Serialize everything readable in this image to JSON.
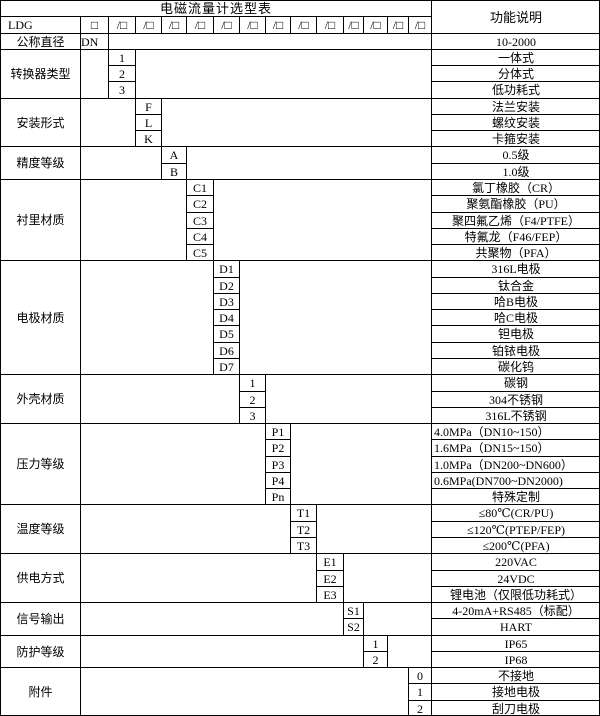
{
  "title": "电磁流量计选型表",
  "function_header": "功能说明",
  "model_row": {
    "model": "LDG",
    "first_box": "□",
    "slot_box": "/□",
    "slot_count": 13
  },
  "categories": [
    {
      "label": "公称直径",
      "col": 1,
      "code_align": "left",
      "codes": [
        "DN"
      ],
      "functions": [
        "10-2000"
      ]
    },
    {
      "label": "转换器类型",
      "col": 2,
      "codes": [
        "1",
        "2",
        "3"
      ],
      "functions": [
        "一体式",
        "分体式",
        "低功耗式"
      ]
    },
    {
      "label": "安装形式",
      "col": 3,
      "codes": [
        "F",
        "L",
        "K"
      ],
      "functions": [
        "法兰安装",
        "螺纹安装",
        "卡箍安装"
      ]
    },
    {
      "label": "精度等级",
      "col": 4,
      "codes": [
        "A",
        "B"
      ],
      "functions": [
        "0.5级",
        "1.0级"
      ]
    },
    {
      "label": "衬里材质",
      "col": 5,
      "codes": [
        "C1",
        "C2",
        "C3",
        "C4",
        "C5"
      ],
      "functions": [
        "氯丁橡胶（CR）",
        "聚氨酯橡胶（PU）",
        "聚四氟乙烯（F4/PTFE）",
        "特氟龙（F46/FEP）",
        "共聚物（PFA）"
      ]
    },
    {
      "label": "电极材质",
      "col": 6,
      "codes": [
        "D1",
        "D2",
        "D3",
        "D4",
        "D5",
        "D6",
        "D7"
      ],
      "functions": [
        "316L电极",
        "钛合金",
        "哈B电极",
        "哈C电极",
        "钽电极",
        "铂铱电极",
        "碳化钨"
      ]
    },
    {
      "label": "外壳材质",
      "col": 7,
      "codes": [
        "1",
        "2",
        "3"
      ],
      "functions": [
        "碳钢",
        "304不锈钢",
        "316L不锈钢"
      ]
    },
    {
      "label": "压力等级",
      "col": 8,
      "codes": [
        "P1",
        "P2",
        "P3",
        "P4",
        "Pn"
      ],
      "functions": [
        "4.0MPa（DN10~150）",
        "1.6MPa（DN15~150）",
        "1.0MPa（DN200~DN600）",
        "0.6MPa(DN700~DN2000)",
        "特殊定制"
      ],
      "func_align": [
        "left",
        "left",
        "left",
        "left",
        "center"
      ]
    },
    {
      "label": "温度等级",
      "col": 9,
      "codes": [
        "T1",
        "T2",
        "T3"
      ],
      "functions": [
        "≤80℃(CR/PU)",
        "≤120℃(PTEP/FEP)",
        "≤200℃(PFA)"
      ]
    },
    {
      "label": "供电方式",
      "col": 10,
      "codes": [
        "E1",
        "E2",
        "E3"
      ],
      "functions": [
        "220VAC",
        "24VDC",
        "锂电池（仅限低功耗式）"
      ]
    },
    {
      "label": "信号输出",
      "col": 11,
      "codes": [
        "S1",
        "S2"
      ],
      "functions": [
        "4-20mA+RS485（标配）",
        "HART"
      ]
    },
    {
      "label": "防护等级",
      "col": 12,
      "codes": [
        "1",
        "2"
      ],
      "functions": [
        "IP65",
        "IP68"
      ]
    },
    {
      "label": "附件",
      "col": 14,
      "codes": [
        "0",
        "1",
        "2"
      ],
      "functions": [
        "不接地",
        "接地电极",
        "刮刀电极"
      ]
    }
  ],
  "colors": {
    "border": "#000000",
    "text": "#000000",
    "background": "#ffffff"
  }
}
